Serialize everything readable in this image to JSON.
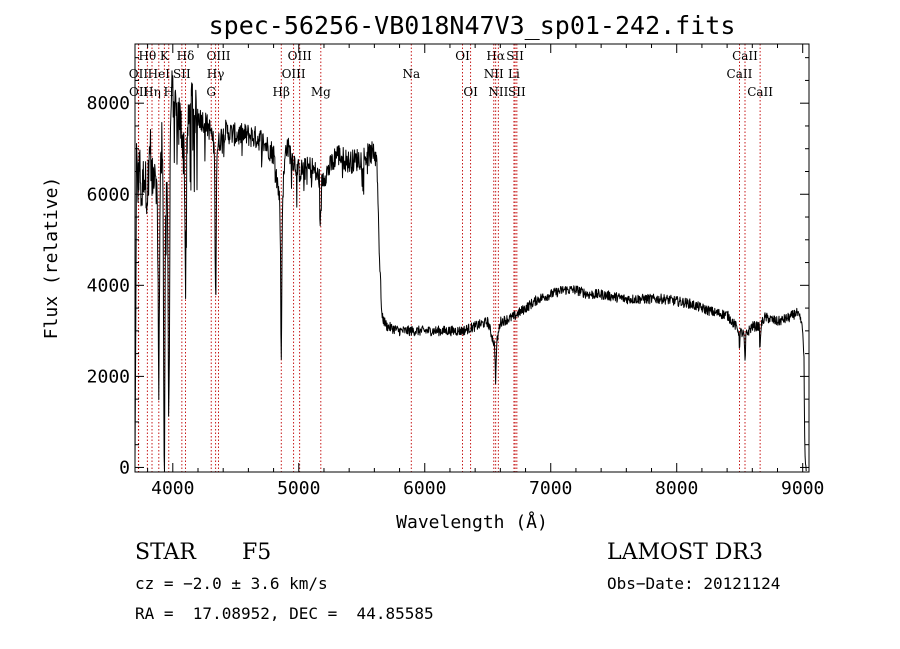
{
  "chart_data": {
    "type": "line",
    "title": "spec-56256-VB018N47V3_sp01-242.fits",
    "xlabel": "Wavelength (Å)",
    "ylabel": "Flux (relative)",
    "xlim": [
      3700,
      9050
    ],
    "ylim": [
      -100,
      9300
    ],
    "xticks": [
      4000,
      5000,
      6000,
      7000,
      8000,
      9000
    ],
    "yticks": [
      0,
      2000,
      4000,
      6000,
      8000
    ],
    "grid": false,
    "series": [
      {
        "name": "spectrum",
        "anchors_x": [
          3700,
          3705,
          3712,
          3722,
          3735,
          3750,
          3770,
          3798,
          3820,
          3835,
          3860,
          3889,
          3910,
          3933,
          3950,
          3968,
          3990,
          4020,
          4060,
          4101,
          4140,
          4200,
          4250,
          4300,
          4340,
          4400,
          4500,
          4600,
          4700,
          4800,
          4861,
          4900,
          5000,
          5100,
          5175,
          5250,
          5300,
          5400,
          5500,
          5580,
          5620,
          5640,
          5660,
          5700,
          5800,
          5900,
          6000,
          6100,
          6200,
          6300,
          6400,
          6500,
          6563,
          6600,
          6700,
          6800,
          6900,
          7000,
          7100,
          7200,
          7300,
          7400,
          7500,
          7600,
          7700,
          7800,
          7900,
          8000,
          8100,
          8200,
          8300,
          8400,
          8498,
          8542,
          8600,
          8662,
          8700,
          8800,
          8900,
          8950,
          8990,
          9000,
          9010,
          9015,
          9020,
          9030
        ],
        "anchors_y": [
          0,
          2400,
          6900,
          6000,
          6800,
          5800,
          6500,
          6000,
          7200,
          6200,
          6800,
          5000,
          7400,
          5000,
          6500,
          5500,
          8300,
          8000,
          7600,
          6800,
          8000,
          7700,
          7600,
          7400,
          6900,
          7400,
          7300,
          7300,
          7200,
          6900,
          5600,
          7100,
          6500,
          6600,
          6300,
          6600,
          6900,
          6700,
          6800,
          6900,
          6800,
          4700,
          3300,
          3100,
          3000,
          3000,
          3000,
          3000,
          3000,
          3000,
          3100,
          3200,
          2600,
          3200,
          3300,
          3500,
          3700,
          3800,
          3900,
          3900,
          3800,
          3800,
          3750,
          3700,
          3700,
          3700,
          3700,
          3650,
          3600,
          3500,
          3400,
          3350,
          3000,
          2900,
          3100,
          3100,
          3300,
          3200,
          3300,
          3400,
          3200,
          3000,
          2400,
          800,
          100,
          -100
        ],
        "absorption_lines": [
          {
            "x": 3889,
            "depth": 3500
          },
          {
            "x": 3933,
            "depth": 5200
          },
          {
            "x": 3968,
            "depth": 4800
          },
          {
            "x": 4101,
            "depth": 2800
          },
          {
            "x": 4340,
            "depth": 3200
          },
          {
            "x": 4861,
            "depth": 3300
          },
          {
            "x": 5175,
            "depth": 900
          },
          {
            "x": 6563,
            "depth": 700
          },
          {
            "x": 8498,
            "depth": 300
          },
          {
            "x": 8542,
            "depth": 600
          },
          {
            "x": 8662,
            "depth": 500
          }
        ]
      }
    ],
    "line_markers": [
      {
        "label": "Hθ",
        "x": 3798,
        "row": 0
      },
      {
        "label": "OII",
        "x": 3727,
        "row": 1
      },
      {
        "label": "OII",
        "x": 3729,
        "row": 2
      },
      {
        "label": "Hη",
        "x": 3835,
        "row": 2
      },
      {
        "label": "HeI",
        "x": 3889,
        "row": 1
      },
      {
        "label": "K",
        "x": 3933,
        "row": 0
      },
      {
        "label": "H",
        "x": 3968,
        "row": 2
      },
      {
        "label": "SII",
        "x": 4072,
        "row": 1
      },
      {
        "label": "Hδ",
        "x": 4101,
        "row": 0
      },
      {
        "label": "OIII",
        "x": 4363,
        "row": 0
      },
      {
        "label": "Hγ",
        "x": 4340,
        "row": 1
      },
      {
        "label": "G",
        "x": 4305,
        "row": 2
      },
      {
        "label": "Hβ",
        "x": 4861,
        "row": 2
      },
      {
        "label": "OIII",
        "x": 5007,
        "row": 0
      },
      {
        "label": "OIII",
        "x": 4959,
        "row": 1
      },
      {
        "label": "Mg",
        "x": 5175,
        "row": 2
      },
      {
        "label": "Na",
        "x": 5893,
        "row": 1
      },
      {
        "label": "OI",
        "x": 6300,
        "row": 0
      },
      {
        "label": "OI",
        "x": 6364,
        "row": 2
      },
      {
        "label": "Hα",
        "x": 6563,
        "row": 0
      },
      {
        "label": "NII",
        "x": 6548,
        "row": 1
      },
      {
        "label": "NII",
        "x": 6584,
        "row": 2
      },
      {
        "label": "SII",
        "x": 6717,
        "row": 0
      },
      {
        "label": "Li",
        "x": 6708,
        "row": 1
      },
      {
        "label": "SII",
        "x": 6731,
        "row": 2
      },
      {
        "label": "CaII",
        "x": 8542,
        "row": 0
      },
      {
        "label": "CaII",
        "x": 8498,
        "row": 1
      },
      {
        "label": "CaII",
        "x": 8662,
        "row": 2
      }
    ],
    "marker_color": "#c00000"
  },
  "info": {
    "object": "STAR",
    "subclass": "F5",
    "survey": "LAMOST DR3",
    "cz": "cz = −2.0 ± 3.6 km/s",
    "obs_date": "Obs−Date: 20121124",
    "radec": "RA =  17.08952, DEC =  44.85585"
  }
}
